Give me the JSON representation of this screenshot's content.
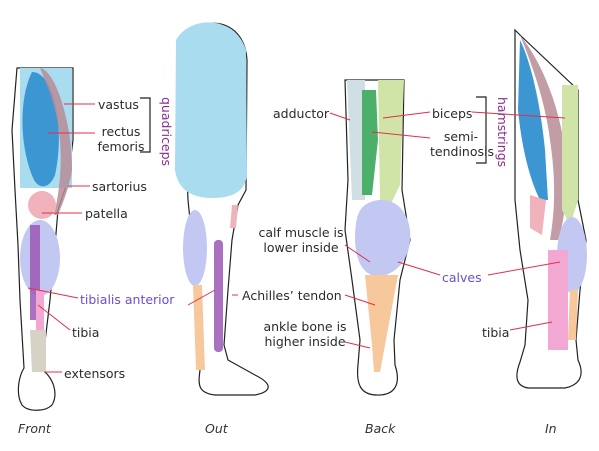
{
  "labels": {
    "vastus": "vastus",
    "rectus_femoris": [
      "rectus",
      "femoris"
    ],
    "quadriceps": "quadriceps",
    "sartorius": "sartorius",
    "patella": "patella",
    "tibialis_anterior": "tibialis anterior",
    "tibia_front": "tibia",
    "extensors": "extensors",
    "adductor": "adductor",
    "biceps": "biceps",
    "semitendinosis": [
      "semi-",
      "tendinosis"
    ],
    "hamstrings": "hamstrings",
    "calf_muscle": [
      "calf muscle is",
      "lower inside"
    ],
    "calves": "calves",
    "achilles_tendon": "Achilles’ tendon",
    "ankle_bone": [
      "ankle bone is",
      "higher inside"
    ],
    "tibia_in": "tibia"
  },
  "captions": {
    "front": "Front",
    "out": "Out",
    "back": "Back",
    "in": "In"
  },
  "colors": {
    "thigh_light_blue": "#a9dcef",
    "rectus_blue": "#3c96d2",
    "sartorius_mauve": "#b98c96",
    "patella_pink": "#f0b2bb",
    "calf_lavender": "#c3c8f2",
    "tibialis_purple": "#9a58b4",
    "tibia_pink": "#f2a8d2",
    "achilles_orange": "#f7c89b",
    "biceps_green": "#cfe4a6",
    "semitendinosis_green": "#4db06a",
    "leader_red": "#e0304a",
    "group_label_purple": "#8a2d8f",
    "calves_label_blue": "#6a4fcf"
  }
}
